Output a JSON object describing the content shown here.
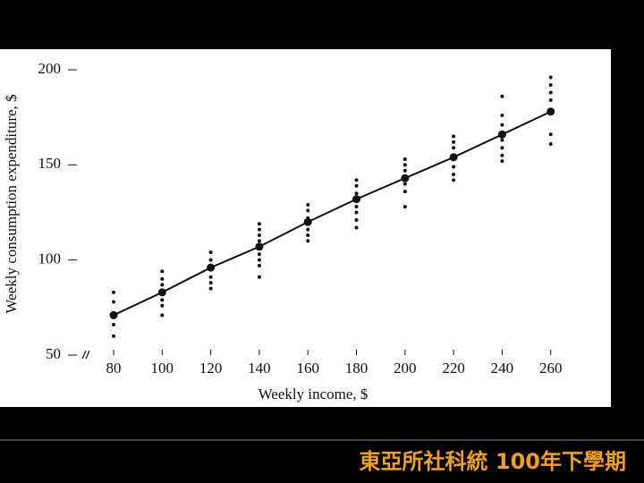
{
  "chart_data": {
    "type": "scatter",
    "x_label": "Weekly income, $",
    "y_label": "Weekly consumption expenditure, $",
    "xlim": [
      66,
      266
    ],
    "xticks": [
      80,
      100,
      120,
      140,
      160,
      180,
      200,
      220,
      240,
      260
    ],
    "ylim": [
      50,
      200
    ],
    "yticks": [
      50,
      100,
      150,
      200
    ],
    "series": [
      {
        "color": "#111111",
        "mode": "markers",
        "x": [
          80,
          80,
          80,
          80,
          100,
          100,
          100,
          100,
          100,
          100,
          100,
          120,
          120,
          120,
          120,
          120,
          140,
          140,
          140,
          140,
          140,
          140,
          140,
          140,
          160,
          160,
          160,
          160,
          160,
          160,
          180,
          180,
          180,
          180,
          180,
          180,
          180,
          200,
          200,
          200,
          200,
          200,
          200,
          220,
          220,
          220,
          220,
          220,
          220,
          240,
          240,
          240,
          240,
          240,
          240,
          240,
          260,
          260,
          260,
          260,
          260,
          260
        ],
        "values": [
          83,
          78,
          66,
          60,
          94,
          90,
          87,
          84,
          79,
          76,
          71,
          104,
          100,
          91,
          88,
          85,
          119,
          116,
          113,
          110,
          103,
          100,
          97,
          91,
          129,
          126,
          122,
          116,
          113,
          110,
          142,
          139,
          135,
          128,
          125,
          121,
          117,
          153,
          150,
          147,
          140,
          136,
          128,
          165,
          162,
          159,
          149,
          145,
          142,
          186,
          176,
          171,
          163,
          159,
          155,
          152,
          196,
          192,
          188,
          184,
          166,
          161
        ]
      },
      {
        "color": "#111111",
        "mode": "lines+markers",
        "x": [
          80,
          100,
          120,
          140,
          160,
          180,
          200,
          220,
          240,
          260
        ],
        "values": [
          71,
          83,
          96,
          107,
          120,
          132,
          143,
          154,
          166,
          178
        ]
      }
    ]
  },
  "footer": "東亞所社科統 100年下學期"
}
